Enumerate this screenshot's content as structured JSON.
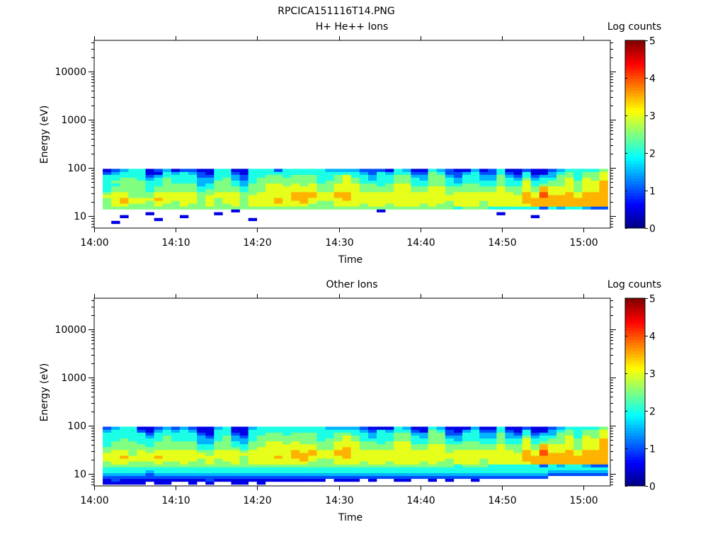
{
  "title": "RPCICA151116T14.PNG",
  "chart_data": [
    {
      "type": "heatmap",
      "title": "H+ He++ Ions",
      "xlabel": "Time",
      "ylabel": "Energy (eV)",
      "xticks": [
        "14:00",
        "14:10",
        "14:20",
        "14:30",
        "14:40",
        "14:50",
        "15:00"
      ],
      "xtick_minutes": [
        0,
        10,
        20,
        30,
        40,
        50,
        60
      ],
      "xlim_minutes": [
        0,
        63.3
      ],
      "yscale": "log",
      "yticks": [
        "10",
        "100",
        "1000",
        "10000"
      ],
      "ytick_values": [
        10,
        100,
        1000,
        10000
      ],
      "ylim": [
        5.6,
        44000
      ],
      "colorbar": {
        "label": "Log counts",
        "ticks": [
          "0",
          "1",
          "2",
          "3",
          "4",
          "5"
        ],
        "range": [
          0,
          5
        ],
        "colormap": "jet"
      },
      "data_start_minute": 1.05,
      "column_step_minutes": 1.05,
      "energy_bins_log10_start": 0.78,
      "energy_bins_log10_step": 0.06,
      "value_encoding": "each column string lists energy bins low->high; '.' = no counts, digit d = log counts d*0.5",
      "columns": [
        "......55556544444421",
        ".1....56666655454432",
        "...1..56776655555443",
        "......55665555555444",
        "......55665555554444",
        "....1.55565544443211",
        "..1...56676655444312",
        "......55666655555443",
        "......55566655544431",
        "...1..56666655544442",
        "......55666655544432",
        "......55555544333221",
        "......56666554433211",
        "....1.55556655554444",
        "......55666655555444",
        ".....156666655443321",
        "......55555544332211",
        "..1...56666555544444",
        "......56666655555444",
        "......56666666655544",
        "......56776666655542",
        "......56666666555444",
        "......56677766655544",
        "......56777766555544",
        "......55667766655544",
        "......55566655544444",
        "......55566655554443",
        "......56667766655543",
        "......56677766666643",
        "......56666666655443",
        "......55666655544432",
        "......56666655543322",
        ".....156666655444442",
        "......55666655544431",
        "......56666666655544",
        "......56666666655543",
        "......56666655444321",
        "......55666655443321",
        "......56666666555554",
        "......55666666555543",
        "......55566555444322",
        "......46666655433221",
        "......56666655544431",
        "......56666655544443",
        "......55566655443321",
        "......46666655443322",
        "....1.46666666555544",
        "......46666655444321",
        "......46666555443211",
        "......46777766665442",
        "...1..47776655443211",
        "......27778877544311",
        "......47777666554332",
        "......37777666555543",
        "......47777766666554",
        "......47776655554444",
        "......37777766666554",
        "......27777766665554",
        "......27777777776665"
      ]
    },
    {
      "type": "heatmap",
      "title": "Other Ions",
      "xlabel": "Time",
      "ylabel": "Energy (eV)",
      "xticks": [
        "14:00",
        "14:10",
        "14:20",
        "14:30",
        "14:40",
        "14:50",
        "15:00"
      ],
      "xtick_minutes": [
        0,
        10,
        20,
        30,
        40,
        50,
        60
      ],
      "xlim_minutes": [
        0,
        63.3
      ],
      "yscale": "log",
      "yticks": [
        "10",
        "100",
        "1000",
        "10000"
      ],
      "ytick_values": [
        10,
        100,
        1000,
        10000
      ],
      "ylim": [
        5.6,
        44000
      ],
      "colorbar": {
        "label": "Log counts",
        "ticks": [
          "0",
          "1",
          "2",
          "3",
          "4",
          "5"
        ],
        "range": [
          0,
          5
        ],
        "colormap": "jet"
      },
      "data_start_minute": 1.05,
      "column_step_minutes": 1.05,
      "energy_bins_log10_start": 0.78,
      "energy_bins_log10_step": 0.06,
      "value_encoding": "each column string lists energy bins low->high; '.' = no counts, digit d = log counts d*0.5",
      "columns": [
        "11234455666554444432",
        "12234456666655544443",
        "11234456676655554444",
        "11234455665555544444",
        "11234455666655444421",
        ".1223455666554443211",
        "11234456676655544432",
        "11234455666655555443",
        ".1234455666655544432",
        ".1234456666655544443",
        "11234455666655544432",
        ".1234455566544333211",
        "12234456665544332111",
        ".1234455566655544443",
        ".1234455666655555444",
        "11234456666654433211",
        "11234455556544332111",
        ".1234456666655544443",
        "11234456666665555444",
        ".1234456666666655544",
        ".1234456676666655544",
        ".1234456666666555444",
        ".1234456677766655544",
        ".1234456777666555544",
        ".1234455667766555544",
        ".1234455566655544444",
        "..234455566655554443",
        ".1234456667766655543",
        ".1234456677776666543",
        ".1234456666666655443",
        "..234455666655544432",
        ".1234456666655543321",
        "..234456666655444441",
        "..234455666655544431",
        ".1234456666666655544",
        ".1234456666666655543",
        "..234456666655444321",
        "..234455666655443311",
        ".1234456666666555554",
        "..234455666666555543",
        ".1234455566555443221",
        "..234446666655433211",
        "..234456666655544431",
        ".1234456666655544443",
        "..234455566655443321",
        "..234446666655443321",
        "..234446666666555544",
        "..234446666655443321",
        "..234446666555443211",
        "..234446777766665442",
        "..234447776655443211",
        "..234427778877544311",
        "...23447777666554332",
        "...23437777666555543",
        "...23447777766666554",
        "...23447776655554444",
        "...23437777766666554",
        "...23427777766665554",
        "...23427777777776665"
      ]
    }
  ]
}
